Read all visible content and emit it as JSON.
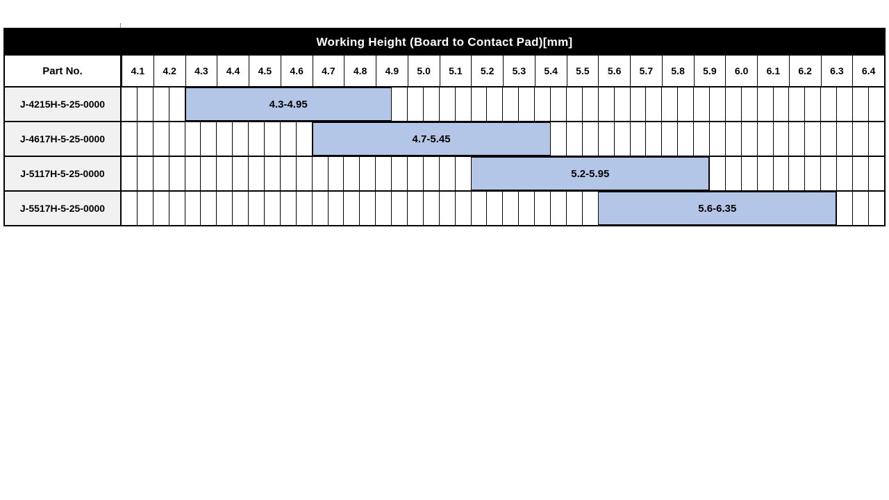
{
  "chart_data": {
    "type": "bar",
    "subtype": "horizontal-range",
    "title": "Working Height (Board to Contact Pad)[mm]",
    "row_header": "Part No.",
    "axis": {
      "min": 4.1,
      "max": 6.5,
      "major_step": 0.1,
      "minor_step": 0.05
    },
    "column_labels": [
      "4.1",
      "4.2",
      "4.3",
      "4.4",
      "4.5",
      "4.6",
      "4.7",
      "4.8",
      "4.9",
      "5.0",
      "5.1",
      "5.2",
      "5.3",
      "5.4",
      "5.5",
      "5.6",
      "5.7",
      "5.8",
      "5.9",
      "6.0",
      "6.1",
      "6.2",
      "6.3",
      "6.4"
    ],
    "rows": [
      {
        "part_no": "J-4215H-5-25-0000",
        "range_start": 4.3,
        "range_end": 4.95,
        "range_label": "4.3-4.95"
      },
      {
        "part_no": "J-4617H-5-25-0000",
        "range_start": 4.7,
        "range_end": 5.45,
        "range_label": "4.7-5.45"
      },
      {
        "part_no": "J-5117H-5-25-0000",
        "range_start": 5.2,
        "range_end": 5.95,
        "range_label": "5.2-5.95"
      },
      {
        "part_no": "J-5517H-5-25-0000",
        "range_start": 5.6,
        "range_end": 6.35,
        "range_label": "5.6-6.35"
      }
    ],
    "colors": {
      "bar_fill": "#B4C6E7",
      "row_label_bg": "#F1F1F1",
      "title_bg": "#000000",
      "title_fg": "#FFFFFF",
      "grid_line": "#000000"
    },
    "legend_position": "none",
    "grid": true
  }
}
